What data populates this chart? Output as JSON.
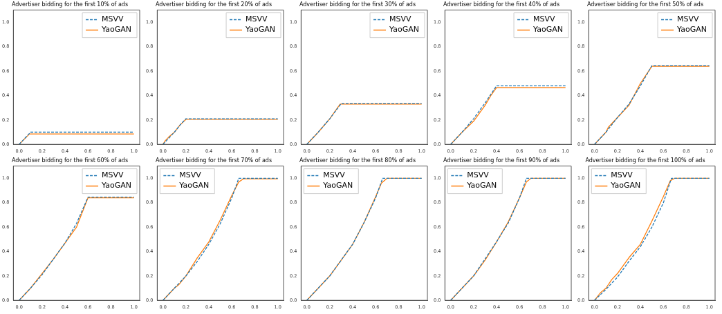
{
  "chart_data": [
    {
      "type": "line",
      "title": "Advertiser bidding for the first 10% of ads",
      "legend": "top right",
      "grid": false,
      "xlim": [
        -0.05,
        1.05
      ],
      "ylim": [
        0,
        1.1
      ],
      "xticks": [
        {
          "value": 0,
          "label": "0.0"
        },
        {
          "value": 0.2,
          "label": "0.2"
        },
        {
          "value": 0.4,
          "label": "0.4"
        },
        {
          "value": 0.6,
          "label": "0.6"
        },
        {
          "value": 0.8,
          "label": "0.8"
        },
        {
          "value": 1,
          "label": "1.0"
        }
      ],
      "yticks": [
        {
          "value": 0,
          "label": "0.0"
        },
        {
          "value": 0.2,
          "label": "0.2"
        },
        {
          "value": 0.4,
          "label": "0.4"
        },
        {
          "value": 0.6,
          "label": "0.6"
        },
        {
          "value": 0.8,
          "label": "0.8"
        },
        {
          "value": 1,
          "label": "1.0"
        }
      ],
      "series": [
        {
          "name": "MSVV",
          "color": "#1f77b4",
          "line_style": "dashed",
          "x": [
            0,
            0.1,
            1
          ],
          "values": [
            0,
            0.1,
            0.1
          ]
        },
        {
          "name": "YaoGAN",
          "color": "#ff7f0e",
          "line_style": "solid",
          "x": [
            0,
            0.09,
            1
          ],
          "values": [
            0,
            0.085,
            0.085
          ]
        }
      ]
    },
    {
      "type": "line",
      "title": "Advertiser bidding for the first 20% of ads",
      "legend": "top right",
      "grid": false,
      "xlim": [
        -0.05,
        1.05
      ],
      "ylim": [
        0,
        1.1
      ],
      "xticks": [
        {
          "value": 0,
          "label": "0.0"
        },
        {
          "value": 0.2,
          "label": "0.2"
        },
        {
          "value": 0.4,
          "label": "0.4"
        },
        {
          "value": 0.6,
          "label": "0.6"
        },
        {
          "value": 0.8,
          "label": "0.8"
        },
        {
          "value": 1,
          "label": "1.0"
        }
      ],
      "yticks": [
        {
          "value": 0,
          "label": "0.0"
        },
        {
          "value": 0.2,
          "label": "0.2"
        },
        {
          "value": 0.4,
          "label": "0.4"
        },
        {
          "value": 0.6,
          "label": "0.6"
        },
        {
          "value": 0.8,
          "label": "0.8"
        },
        {
          "value": 1,
          "label": "1.0"
        }
      ],
      "series": [
        {
          "name": "MSVV",
          "color": "#1f77b4",
          "line_style": "dashed",
          "x": [
            0,
            0.05,
            0.1,
            0.15,
            0.2,
            1
          ],
          "values": [
            0,
            0.05,
            0.1,
            0.16,
            0.21,
            0.21
          ]
        },
        {
          "name": "YaoGAN",
          "color": "#ff7f0e",
          "line_style": "solid",
          "x": [
            0,
            0.02,
            0.05,
            0.1,
            0.15,
            0.2,
            1
          ],
          "values": [
            0,
            0.03,
            0.06,
            0.1,
            0.16,
            0.205,
            0.205
          ]
        }
      ]
    },
    {
      "type": "line",
      "title": "Advertiser bidding for the first 30% of ads",
      "legend": "top right",
      "grid": false,
      "xlim": [
        -0.05,
        1.05
      ],
      "ylim": [
        0,
        1.1
      ],
      "xticks": [
        {
          "value": 0,
          "label": "0.0"
        },
        {
          "value": 0.2,
          "label": "0.2"
        },
        {
          "value": 0.4,
          "label": "0.4"
        },
        {
          "value": 0.6,
          "label": "0.6"
        },
        {
          "value": 0.8,
          "label": "0.8"
        },
        {
          "value": 1,
          "label": "1.0"
        }
      ],
      "yticks": [
        {
          "value": 0,
          "label": "0.0"
        },
        {
          "value": 0.2,
          "label": "0.2"
        },
        {
          "value": 0.4,
          "label": "0.4"
        },
        {
          "value": 0.6,
          "label": "0.6"
        },
        {
          "value": 0.8,
          "label": "0.8"
        },
        {
          "value": 1,
          "label": "1.0"
        }
      ],
      "series": [
        {
          "name": "MSVV",
          "color": "#1f77b4",
          "line_style": "dashed",
          "x": [
            0,
            0.1,
            0.2,
            0.3,
            1
          ],
          "values": [
            0,
            0.1,
            0.21,
            0.335,
            0.335
          ]
        },
        {
          "name": "YaoGAN",
          "color": "#ff7f0e",
          "line_style": "solid",
          "x": [
            0,
            0.1,
            0.2,
            0.29,
            1
          ],
          "values": [
            0,
            0.1,
            0.21,
            0.33,
            0.33
          ]
        }
      ]
    },
    {
      "type": "line",
      "title": "Advertiser bidding for the first 40% of ads",
      "legend": "top right",
      "grid": false,
      "xlim": [
        -0.05,
        1.05
      ],
      "ylim": [
        0,
        1.1
      ],
      "xticks": [
        {
          "value": 0,
          "label": "0.0"
        },
        {
          "value": 0.2,
          "label": "0.2"
        },
        {
          "value": 0.4,
          "label": "0.4"
        },
        {
          "value": 0.6,
          "label": "0.6"
        },
        {
          "value": 0.8,
          "label": "0.8"
        },
        {
          "value": 1,
          "label": "1.0"
        }
      ],
      "yticks": [
        {
          "value": 0,
          "label": "0.0"
        },
        {
          "value": 0.2,
          "label": "0.2"
        },
        {
          "value": 0.4,
          "label": "0.4"
        },
        {
          "value": 0.6,
          "label": "0.6"
        },
        {
          "value": 0.8,
          "label": "0.8"
        },
        {
          "value": 1,
          "label": "1.0"
        }
      ],
      "series": [
        {
          "name": "MSVV",
          "color": "#1f77b4",
          "line_style": "dashed",
          "x": [
            0,
            0.1,
            0.2,
            0.3,
            0.4,
            1
          ],
          "values": [
            0,
            0.1,
            0.21,
            0.34,
            0.48,
            0.48
          ]
        },
        {
          "name": "YaoGAN",
          "color": "#ff7f0e",
          "line_style": "solid",
          "x": [
            0,
            0.1,
            0.2,
            0.3,
            0.35,
            0.4,
            1
          ],
          "values": [
            0,
            0.1,
            0.19,
            0.32,
            0.4,
            0.465,
            0.465
          ]
        }
      ]
    },
    {
      "type": "line",
      "title": "Advertiser bidding for the first 50% of ads",
      "legend": "top right",
      "grid": false,
      "xlim": [
        -0.05,
        1.05
      ],
      "ylim": [
        0,
        1.1
      ],
      "xticks": [
        {
          "value": 0,
          "label": "0.0"
        },
        {
          "value": 0.2,
          "label": "0.2"
        },
        {
          "value": 0.4,
          "label": "0.4"
        },
        {
          "value": 0.6,
          "label": "0.6"
        },
        {
          "value": 0.8,
          "label": "0.8"
        },
        {
          "value": 1,
          "label": "1.0"
        }
      ],
      "yticks": [
        {
          "value": 0,
          "label": "0.0"
        },
        {
          "value": 0.2,
          "label": "0.2"
        },
        {
          "value": 0.4,
          "label": "0.4"
        },
        {
          "value": 0.6,
          "label": "0.6"
        },
        {
          "value": 0.8,
          "label": "0.8"
        },
        {
          "value": 1,
          "label": "1.0"
        }
      ],
      "series": [
        {
          "name": "MSVV",
          "color": "#1f77b4",
          "line_style": "dashed",
          "x": [
            0,
            0.1,
            0.2,
            0.3,
            0.4,
            0.5,
            1
          ],
          "values": [
            0,
            0.1,
            0.22,
            0.33,
            0.48,
            0.645,
            0.645
          ]
        },
        {
          "name": "YaoGAN",
          "color": "#ff7f0e",
          "line_style": "solid",
          "x": [
            0,
            0.1,
            0.12,
            0.2,
            0.3,
            0.4,
            0.5,
            1
          ],
          "values": [
            0,
            0.1,
            0.14,
            0.22,
            0.32,
            0.5,
            0.64,
            0.64
          ]
        }
      ]
    },
    {
      "type": "line",
      "title": "Advertiser bidding for the first 60% of ads",
      "legend": "top right",
      "grid": false,
      "xlim": [
        -0.05,
        1.05
      ],
      "ylim": [
        0,
        1.1
      ],
      "xticks": [
        {
          "value": 0,
          "label": "0.0"
        },
        {
          "value": 0.2,
          "label": "0.2"
        },
        {
          "value": 0.4,
          "label": "0.4"
        },
        {
          "value": 0.6,
          "label": "0.6"
        },
        {
          "value": 0.8,
          "label": "0.8"
        },
        {
          "value": 1,
          "label": "1.0"
        }
      ],
      "yticks": [
        {
          "value": 0,
          "label": "0.0"
        },
        {
          "value": 0.2,
          "label": "0.2"
        },
        {
          "value": 0.4,
          "label": "0.4"
        },
        {
          "value": 0.6,
          "label": "0.6"
        },
        {
          "value": 0.8,
          "label": "0.8"
        },
        {
          "value": 1,
          "label": "1.0"
        }
      ],
      "series": [
        {
          "name": "MSVV",
          "color": "#1f77b4",
          "line_style": "dashed",
          "x": [
            0,
            0.1,
            0.2,
            0.3,
            0.4,
            0.5,
            0.6,
            1
          ],
          "values": [
            0,
            0.1,
            0.21,
            0.34,
            0.47,
            0.63,
            0.845,
            0.845
          ]
        },
        {
          "name": "YaoGAN",
          "color": "#ff7f0e",
          "line_style": "solid",
          "x": [
            0,
            0.1,
            0.2,
            0.3,
            0.4,
            0.5,
            0.6,
            1
          ],
          "values": [
            0,
            0.1,
            0.22,
            0.34,
            0.47,
            0.6,
            0.84,
            0.84
          ]
        }
      ]
    },
    {
      "type": "line",
      "title": "Advertiser bidding for the first 70% of ads",
      "legend": "top left",
      "grid": false,
      "xlim": [
        -0.05,
        1.05
      ],
      "ylim": [
        0,
        1.1
      ],
      "xticks": [
        {
          "value": 0,
          "label": "0.0"
        },
        {
          "value": 0.2,
          "label": "0.2"
        },
        {
          "value": 0.4,
          "label": "0.4"
        },
        {
          "value": 0.6,
          "label": "0.6"
        },
        {
          "value": 0.8,
          "label": "0.8"
        },
        {
          "value": 1,
          "label": "1.0"
        }
      ],
      "yticks": [
        {
          "value": 0,
          "label": "0.0"
        },
        {
          "value": 0.2,
          "label": "0.2"
        },
        {
          "value": 0.4,
          "label": "0.4"
        },
        {
          "value": 0.6,
          "label": "0.6"
        },
        {
          "value": 0.8,
          "label": "0.8"
        },
        {
          "value": 1,
          "label": "1.0"
        }
      ],
      "series": [
        {
          "name": "MSVV",
          "color": "#1f77b4",
          "line_style": "dashed",
          "x": [
            0,
            0.1,
            0.2,
            0.3,
            0.4,
            0.5,
            0.6,
            0.66,
            1
          ],
          "values": [
            0,
            0.1,
            0.2,
            0.32,
            0.46,
            0.63,
            0.84,
            1,
            1
          ]
        },
        {
          "name": "YaoGAN",
          "color": "#ff7f0e",
          "line_style": "solid",
          "x": [
            0,
            0.1,
            0.14,
            0.2,
            0.3,
            0.4,
            0.5,
            0.6,
            0.66,
            0.7,
            1
          ],
          "values": [
            0,
            0.1,
            0.13,
            0.2,
            0.35,
            0.48,
            0.66,
            0.86,
            0.97,
            0.995,
            0.995
          ]
        }
      ]
    },
    {
      "type": "line",
      "title": "Advertiser bidding for the first 80% of ads",
      "legend": "top left",
      "grid": false,
      "xlim": [
        -0.05,
        1.05
      ],
      "ylim": [
        0,
        1.1
      ],
      "xticks": [
        {
          "value": 0,
          "label": "0.0"
        },
        {
          "value": 0.2,
          "label": "0.2"
        },
        {
          "value": 0.4,
          "label": "0.4"
        },
        {
          "value": 0.6,
          "label": "0.6"
        },
        {
          "value": 0.8,
          "label": "0.8"
        },
        {
          "value": 1,
          "label": "1.0"
        }
      ],
      "yticks": [
        {
          "value": 0,
          "label": "0.0"
        },
        {
          "value": 0.2,
          "label": "0.2"
        },
        {
          "value": 0.4,
          "label": "0.4"
        },
        {
          "value": 0.6,
          "label": "0.6"
        },
        {
          "value": 0.8,
          "label": "0.8"
        },
        {
          "value": 1,
          "label": "1.0"
        }
      ],
      "series": [
        {
          "name": "MSVV",
          "color": "#1f77b4",
          "line_style": "dashed",
          "x": [
            0,
            0.1,
            0.2,
            0.3,
            0.4,
            0.5,
            0.6,
            0.66,
            1
          ],
          "values": [
            0,
            0.1,
            0.2,
            0.33,
            0.46,
            0.64,
            0.84,
            1,
            1
          ]
        },
        {
          "name": "YaoGAN",
          "color": "#ff7f0e",
          "line_style": "solid",
          "x": [
            0,
            0.1,
            0.2,
            0.3,
            0.4,
            0.5,
            0.6,
            0.65,
            0.7,
            1
          ],
          "values": [
            0,
            0.1,
            0.2,
            0.33,
            0.46,
            0.64,
            0.85,
            0.96,
            1,
            1
          ]
        }
      ]
    },
    {
      "type": "line",
      "title": "Advertiser bidding for the first 90% of ads",
      "legend": "top left",
      "grid": false,
      "xlim": [
        -0.05,
        1.05
      ],
      "ylim": [
        0,
        1.1
      ],
      "xticks": [
        {
          "value": 0,
          "label": "0.0"
        },
        {
          "value": 0.2,
          "label": "0.2"
        },
        {
          "value": 0.4,
          "label": "0.4"
        },
        {
          "value": 0.6,
          "label": "0.6"
        },
        {
          "value": 0.8,
          "label": "0.8"
        },
        {
          "value": 1,
          "label": "1.0"
        }
      ],
      "yticks": [
        {
          "value": 0,
          "label": "0.0"
        },
        {
          "value": 0.2,
          "label": "0.2"
        },
        {
          "value": 0.4,
          "label": "0.4"
        },
        {
          "value": 0.6,
          "label": "0.6"
        },
        {
          "value": 0.8,
          "label": "0.8"
        },
        {
          "value": 1,
          "label": "1.0"
        }
      ],
      "series": [
        {
          "name": "MSVV",
          "color": "#1f77b4",
          "line_style": "dashed",
          "x": [
            0,
            0.1,
            0.2,
            0.3,
            0.4,
            0.5,
            0.6,
            0.66,
            1
          ],
          "values": [
            0,
            0.1,
            0.2,
            0.34,
            0.48,
            0.63,
            0.84,
            1,
            1
          ]
        },
        {
          "name": "YaoGAN",
          "color": "#ff7f0e",
          "line_style": "solid",
          "x": [
            0,
            0.1,
            0.2,
            0.3,
            0.4,
            0.5,
            0.6,
            0.66,
            0.7,
            1
          ],
          "values": [
            0,
            0.1,
            0.2,
            0.33,
            0.48,
            0.64,
            0.84,
            0.97,
            1,
            1
          ]
        }
      ]
    },
    {
      "type": "line",
      "title": "Advertiser bidding for the first 100% of ads",
      "legend": "top left",
      "grid": false,
      "xlim": [
        -0.05,
        1.05
      ],
      "ylim": [
        0,
        1.1
      ],
      "xticks": [
        {
          "value": 0,
          "label": "0.0"
        },
        {
          "value": 0.2,
          "label": "0.2"
        },
        {
          "value": 0.4,
          "label": "0.4"
        },
        {
          "value": 0.6,
          "label": "0.6"
        },
        {
          "value": 0.8,
          "label": "0.8"
        },
        {
          "value": 1,
          "label": "1.0"
        }
      ],
      "yticks": [
        {
          "value": 0,
          "label": "0.0"
        },
        {
          "value": 0.2,
          "label": "0.2"
        },
        {
          "value": 0.4,
          "label": "0.4"
        },
        {
          "value": 0.6,
          "label": "0.6"
        },
        {
          "value": 0.8,
          "label": "0.8"
        },
        {
          "value": 1,
          "label": "1.0"
        }
      ],
      "series": [
        {
          "name": "MSVV",
          "color": "#1f77b4",
          "line_style": "dashed",
          "x": [
            0,
            0.1,
            0.2,
            0.3,
            0.4,
            0.5,
            0.6,
            0.67,
            1
          ],
          "values": [
            0,
            0.09,
            0.19,
            0.32,
            0.44,
            0.6,
            0.8,
            1,
            1
          ]
        },
        {
          "name": "YaoGAN",
          "color": "#ff7f0e",
          "line_style": "solid",
          "x": [
            0,
            0.05,
            0.1,
            0.15,
            0.2,
            0.3,
            0.4,
            0.5,
            0.6,
            0.66,
            0.7,
            1
          ],
          "values": [
            0,
            0.06,
            0.1,
            0.17,
            0.22,
            0.35,
            0.46,
            0.65,
            0.85,
            0.98,
            1,
            1
          ]
        }
      ]
    }
  ]
}
